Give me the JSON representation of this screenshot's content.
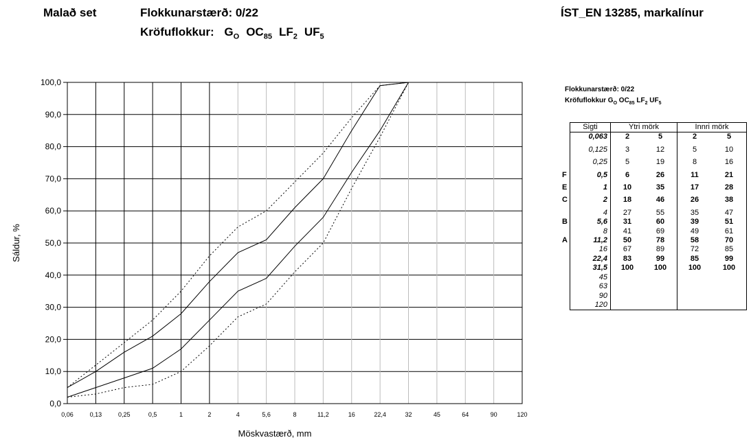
{
  "header": {
    "title": "Malað set",
    "size_label": "Flokkunarstærð: 0/22",
    "category_prefix": "Kröfuflokkur:",
    "category_codes": [
      {
        "base": "G",
        "sub": "O"
      },
      {
        "base": "OC",
        "sub": "85"
      },
      {
        "base": "LF",
        "sub": "2"
      },
      {
        "base": "UF",
        "sub": "5"
      }
    ],
    "standard": "ÍST_EN 13285, markalínur"
  },
  "side_panel": {
    "size_label": "Flokkunarstærð: 0/22",
    "category_label": "Kröfuflokkur G",
    "category_codes": [
      {
        "base": "",
        "sub": "O"
      },
      {
        "base": " OC",
        "sub": "85"
      },
      {
        "base": " LF",
        "sub": "2"
      },
      {
        "base": " UF",
        "sub": "5"
      }
    ]
  },
  "table": {
    "headers": {
      "sieve": "Sigti",
      "outer": "Ytri mörk",
      "inner": "Innri mörk"
    },
    "rows": [
      {
        "sieve": "0,063",
        "o1": "2",
        "o2": "5",
        "i1": "2",
        "i2": "5",
        "bold": true,
        "letter": ""
      },
      {
        "sieve": "0,125",
        "o1": "3",
        "o2": "12",
        "i1": "5",
        "i2": "10",
        "bold": false,
        "letter": ""
      },
      {
        "sieve": "0,25",
        "o1": "5",
        "o2": "19",
        "i1": "8",
        "i2": "16",
        "bold": false,
        "letter": ""
      },
      {
        "sieve": "0,5",
        "o1": "6",
        "o2": "26",
        "i1": "11",
        "i2": "21",
        "bold": true,
        "letter": "F"
      },
      {
        "sieve": "1",
        "o1": "10",
        "o2": "35",
        "i1": "17",
        "i2": "28",
        "bold": true,
        "letter": "E"
      },
      {
        "sieve": "2",
        "o1": "18",
        "o2": "46",
        "i1": "26",
        "i2": "38",
        "bold": true,
        "letter": "C"
      },
      {
        "sieve": "4",
        "o1": "27",
        "o2": "55",
        "i1": "35",
        "i2": "47",
        "bold": false,
        "letter": ""
      },
      {
        "sieve": "5,6",
        "o1": "31",
        "o2": "60",
        "i1": "39",
        "i2": "51",
        "bold": true,
        "letter": "B"
      },
      {
        "sieve": "8",
        "o1": "41",
        "o2": "69",
        "i1": "49",
        "i2": "61",
        "bold": false,
        "letter": ""
      },
      {
        "sieve": "11,2",
        "o1": "50",
        "o2": "78",
        "i1": "58",
        "i2": "70",
        "bold": true,
        "letter": "A"
      },
      {
        "sieve": "16",
        "o1": "67",
        "o2": "89",
        "i1": "72",
        "i2": "85",
        "bold": false,
        "letter": ""
      },
      {
        "sieve": "22,4",
        "o1": "83",
        "o2": "99",
        "i1": "85",
        "i2": "99",
        "bold": true,
        "letter": ""
      },
      {
        "sieve": "31,5",
        "o1": "100",
        "o2": "100",
        "i1": "100",
        "i2": "100",
        "bold": true,
        "letter": ""
      },
      {
        "sieve": "45",
        "o1": "",
        "o2": "",
        "i1": "",
        "i2": "",
        "bold": false,
        "letter": ""
      },
      {
        "sieve": "63",
        "o1": "",
        "o2": "",
        "i1": "",
        "i2": "",
        "bold": false,
        "letter": ""
      },
      {
        "sieve": "90",
        "o1": "",
        "o2": "",
        "i1": "",
        "i2": "",
        "bold": false,
        "letter": ""
      },
      {
        "sieve": "120",
        "o1": "",
        "o2": "",
        "i1": "",
        "i2": "",
        "bold": false,
        "letter": ""
      }
    ]
  },
  "chart_data": {
    "type": "line",
    "xlabel": "Möskvastærð, mm",
    "ylabel": "Sáldur, %",
    "ylim": [
      0,
      100
    ],
    "y_ticks": [
      "0,0",
      "10,0",
      "20,0",
      "30,0",
      "40,0",
      "50,0",
      "60,0",
      "70,0",
      "80,0",
      "90,0",
      "100,0"
    ],
    "x_ticks": [
      "0,06",
      "0,13",
      "0,25",
      "0,5",
      "1",
      "2",
      "4",
      "5,6",
      "8",
      "11,2",
      "16",
      "22,4",
      "32",
      "45",
      "64",
      "90",
      "120"
    ],
    "grid": true,
    "series": [
      {
        "style": "dotted",
        "x": [
          0.06,
          0.13,
          0.25,
          0.5,
          1,
          2,
          4,
          5.6,
          8,
          11.2,
          16,
          22.4,
          32
        ],
        "values": [
          2,
          3,
          5,
          6,
          10,
          18,
          27,
          31,
          41,
          50,
          67,
          83,
          100
        ]
      },
      {
        "style": "solid",
        "x": [
          0.06,
          0.13,
          0.25,
          0.5,
          1,
          2,
          4,
          5.6,
          8,
          11.2,
          16,
          22.4,
          32
        ],
        "values": [
          2,
          5,
          8,
          11,
          17,
          26,
          35,
          39,
          49,
          58,
          72,
          85,
          100
        ]
      },
      {
        "style": "solid",
        "x": [
          0.06,
          0.13,
          0.25,
          0.5,
          1,
          2,
          4,
          5.6,
          8,
          11.2,
          16,
          22.4,
          32
        ],
        "values": [
          5,
          10,
          16,
          21,
          28,
          38,
          47,
          51,
          61,
          70,
          85,
          99,
          100
        ]
      },
      {
        "style": "dotted",
        "x": [
          0.06,
          0.13,
          0.25,
          0.5,
          1,
          2,
          4,
          5.6,
          8,
          11.2,
          16,
          22.4,
          32
        ],
        "values": [
          5,
          12,
          19,
          26,
          35,
          46,
          55,
          60,
          69,
          78,
          89,
          99,
          100
        ]
      }
    ]
  }
}
